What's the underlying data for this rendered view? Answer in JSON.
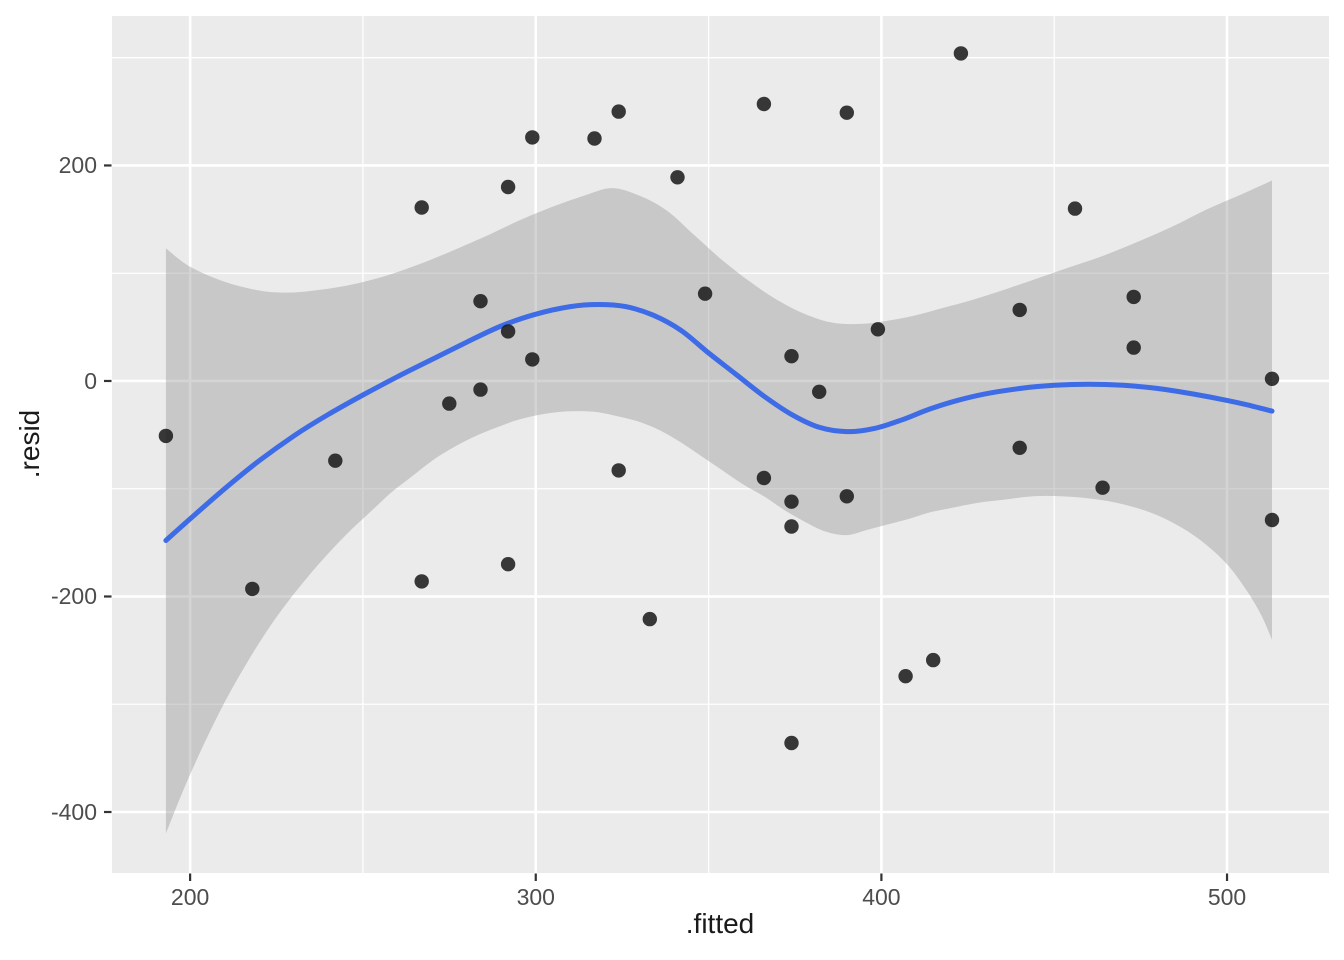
{
  "chart_data": {
    "type": "scatter",
    "title": "",
    "xlabel": ".fitted",
    "ylabel": ".resid",
    "x_domain": [
      177.4,
      529.5
    ],
    "y_domain": [
      -456.6,
      338.7
    ],
    "x_ticks_major": [
      200,
      300,
      400,
      500
    ],
    "x_ticks_minor": [
      250,
      350,
      450
    ],
    "y_ticks_major": [
      200,
      0,
      -200,
      -400
    ],
    "y_ticks_minor": [
      300,
      100,
      -100,
      -300
    ],
    "grid": {
      "major": true,
      "minor": true
    },
    "legend_position": "none",
    "points": [
      [
        193,
        -51
      ],
      [
        218,
        -193
      ],
      [
        242,
        -74
      ],
      [
        267,
        161
      ],
      [
        267,
        -186
      ],
      [
        275,
        -21
      ],
      [
        284,
        74
      ],
      [
        284,
        -8
      ],
      [
        292,
        180
      ],
      [
        292,
        46
      ],
      [
        292,
        -170
      ],
      [
        299,
        226
      ],
      [
        299,
        20
      ],
      [
        317,
        225
      ],
      [
        324,
        250
      ],
      [
        324,
        -83
      ],
      [
        333,
        -221
      ],
      [
        341,
        189
      ],
      [
        349,
        81
      ],
      [
        366,
        257
      ],
      [
        366,
        -90
      ],
      [
        374,
        23
      ],
      [
        374,
        -112
      ],
      [
        374,
        -135
      ],
      [
        374,
        -336
      ],
      [
        382,
        -10
      ],
      [
        390,
        249
      ],
      [
        390,
        -107
      ],
      [
        399,
        48
      ],
      [
        407,
        -274
      ],
      [
        415,
        -259
      ],
      [
        423,
        304
      ],
      [
        440,
        66
      ],
      [
        440,
        -62
      ],
      [
        456,
        160
      ],
      [
        464,
        -99
      ],
      [
        473,
        78
      ],
      [
        473,
        31
      ],
      [
        513,
        2
      ],
      [
        513,
        -129
      ]
    ],
    "smooth_line": [
      [
        193,
        -148
      ],
      [
        200,
        -128
      ],
      [
        210,
        -100
      ],
      [
        220,
        -74
      ],
      [
        230,
        -51
      ],
      [
        240,
        -31
      ],
      [
        250,
        -13
      ],
      [
        260,
        4
      ],
      [
        270,
        20
      ],
      [
        280,
        36
      ],
      [
        290,
        51
      ],
      [
        300,
        62
      ],
      [
        310,
        69
      ],
      [
        318,
        71
      ],
      [
        326,
        69
      ],
      [
        334,
        61
      ],
      [
        342,
        47
      ],
      [
        350,
        26
      ],
      [
        358,
        6
      ],
      [
        366,
        -14
      ],
      [
        374,
        -31
      ],
      [
        382,
        -43
      ],
      [
        390,
        -47
      ],
      [
        398,
        -44
      ],
      [
        406,
        -36
      ],
      [
        414,
        -26
      ],
      [
        422,
        -18
      ],
      [
        430,
        -12
      ],
      [
        440,
        -7
      ],
      [
        450,
        -4
      ],
      [
        460,
        -3
      ],
      [
        470,
        -4
      ],
      [
        480,
        -7
      ],
      [
        490,
        -12
      ],
      [
        500,
        -18
      ],
      [
        507,
        -23
      ],
      [
        513,
        -28
      ]
    ],
    "ci_upper": [
      [
        193,
        123
      ],
      [
        200,
        106
      ],
      [
        210,
        92
      ],
      [
        220,
        84
      ],
      [
        228,
        82
      ],
      [
        236,
        84
      ],
      [
        246,
        89
      ],
      [
        256,
        97
      ],
      [
        266,
        108
      ],
      [
        276,
        121
      ],
      [
        286,
        135
      ],
      [
        296,
        150
      ],
      [
        306,
        163
      ],
      [
        314,
        172
      ],
      [
        322,
        179
      ],
      [
        330,
        172
      ],
      [
        338,
        158
      ],
      [
        346,
        135
      ],
      [
        354,
        112
      ],
      [
        362,
        92
      ],
      [
        370,
        75
      ],
      [
        378,
        62
      ],
      [
        386,
        54
      ],
      [
        394,
        53
      ],
      [
        402,
        56
      ],
      [
        410,
        61
      ],
      [
        418,
        68
      ],
      [
        426,
        75
      ],
      [
        434,
        83
      ],
      [
        444,
        94
      ],
      [
        454,
        105
      ],
      [
        464,
        116
      ],
      [
        474,
        129
      ],
      [
        484,
        143
      ],
      [
        494,
        159
      ],
      [
        504,
        173
      ],
      [
        513,
        186
      ]
    ],
    "ci_lower": [
      [
        193,
        -420
      ],
      [
        198,
        -380
      ],
      [
        204,
        -337
      ],
      [
        210,
        -298
      ],
      [
        216,
        -264
      ],
      [
        222,
        -233
      ],
      [
        228,
        -206
      ],
      [
        234,
        -182
      ],
      [
        240,
        -160
      ],
      [
        246,
        -140
      ],
      [
        252,
        -122
      ],
      [
        258,
        -104
      ],
      [
        264,
        -89
      ],
      [
        270,
        -74
      ],
      [
        276,
        -62
      ],
      [
        282,
        -52
      ],
      [
        288,
        -44
      ],
      [
        294,
        -37
      ],
      [
        300,
        -32
      ],
      [
        306,
        -29
      ],
      [
        312,
        -28
      ],
      [
        318,
        -29
      ],
      [
        324,
        -33
      ],
      [
        330,
        -38
      ],
      [
        336,
        -46
      ],
      [
        342,
        -57
      ],
      [
        348,
        -70
      ],
      [
        354,
        -83
      ],
      [
        360,
        -96
      ],
      [
        366,
        -107
      ],
      [
        372,
        -120
      ],
      [
        378,
        -131
      ],
      [
        384,
        -140
      ],
      [
        390,
        -143
      ],
      [
        396,
        -138
      ],
      [
        402,
        -133
      ],
      [
        408,
        -128
      ],
      [
        414,
        -122
      ],
      [
        420,
        -118
      ],
      [
        428,
        -113
      ],
      [
        436,
        -110
      ],
      [
        444,
        -107
      ],
      [
        452,
        -107
      ],
      [
        460,
        -109
      ],
      [
        468,
        -113
      ],
      [
        476,
        -120
      ],
      [
        484,
        -131
      ],
      [
        492,
        -147
      ],
      [
        500,
        -170
      ],
      [
        506,
        -196
      ],
      [
        510,
        -218
      ],
      [
        513,
        -240
      ]
    ],
    "colors": {
      "figure_background": "#FFFFFF",
      "panel_background": "#EBEBEB",
      "grid_line": "#FFFFFF",
      "point": "#1C1C1C",
      "smooth_line": "#3E6BE6",
      "ci_band_fill": "rgba(153,153,153,0.42)",
      "axis_text": "#4D4D4D",
      "axis_title": "#1A1A1A",
      "tick_mark": "#333333"
    }
  }
}
